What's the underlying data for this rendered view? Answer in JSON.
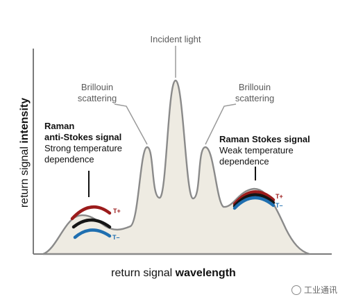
{
  "labels": {
    "incident": "Incident light",
    "brillouin_left": [
      "Brillouin",
      "scattering"
    ],
    "brillouin_right": [
      "Brillouin",
      "scattering"
    ],
    "raman_anti": {
      "line1": "Raman",
      "line2": "anti-Stokes signal",
      "line3": "Strong temperature",
      "line4": "dependence"
    },
    "raman_stokes": {
      "line1": "Raman Stokes signal",
      "line2": "Weak temperature",
      "line3": "dependence"
    },
    "t_plus": "T+",
    "t_minus": "T–"
  },
  "axes": {
    "x_prefix": "return signal ",
    "x_bold": "wavelength",
    "y_prefix": "return signal ",
    "y_bold": "intensity"
  },
  "watermark": "工业通讯",
  "colors": {
    "fill": "#eeebe2",
    "outline": "#8a8a8a",
    "red": "#9b1b1b",
    "black": "#151515",
    "blue": "#1f6fb0"
  }
}
